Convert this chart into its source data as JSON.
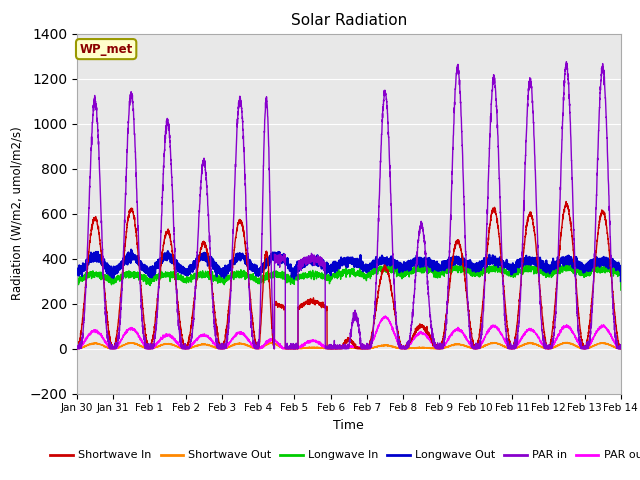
{
  "title": "Solar Radiation",
  "xlabel": "Time",
  "ylabel": "Radiation (W/m2, umol/m2/s)",
  "ylim": [
    -200,
    1400
  ],
  "yticks": [
    -200,
    0,
    200,
    400,
    600,
    800,
    1000,
    1200,
    1400
  ],
  "xlim": [
    0,
    15
  ],
  "xtick_labels": [
    "Jan 30",
    "Jan 31",
    "Feb 1",
    "Feb 2",
    "Feb 3",
    "Feb 4",
    "Feb 5",
    "Feb 6",
    "Feb 7",
    "Feb 8",
    "Feb 9",
    "Feb 10",
    "Feb 11",
    "Feb 12",
    "Feb 13",
    "Feb 14"
  ],
  "xtick_positions": [
    0,
    1,
    2,
    3,
    4,
    5,
    6,
    7,
    8,
    9,
    10,
    11,
    12,
    13,
    14,
    15
  ],
  "legend_label": "WP_met",
  "series": {
    "shortwave_in": {
      "color": "#cc0000",
      "label": "Shortwave In"
    },
    "shortwave_out": {
      "color": "#ff8800",
      "label": "Shortwave Out"
    },
    "longwave_in": {
      "color": "#00cc00",
      "label": "Longwave In"
    },
    "longwave_out": {
      "color": "#0000cc",
      "label": "Longwave Out"
    },
    "par_in": {
      "color": "#8800cc",
      "label": "PAR in"
    },
    "par_out": {
      "color": "#ff00ff",
      "label": "PAR out"
    }
  },
  "fig_bg": "#ffffff",
  "plot_bg": "#e8e8e8"
}
